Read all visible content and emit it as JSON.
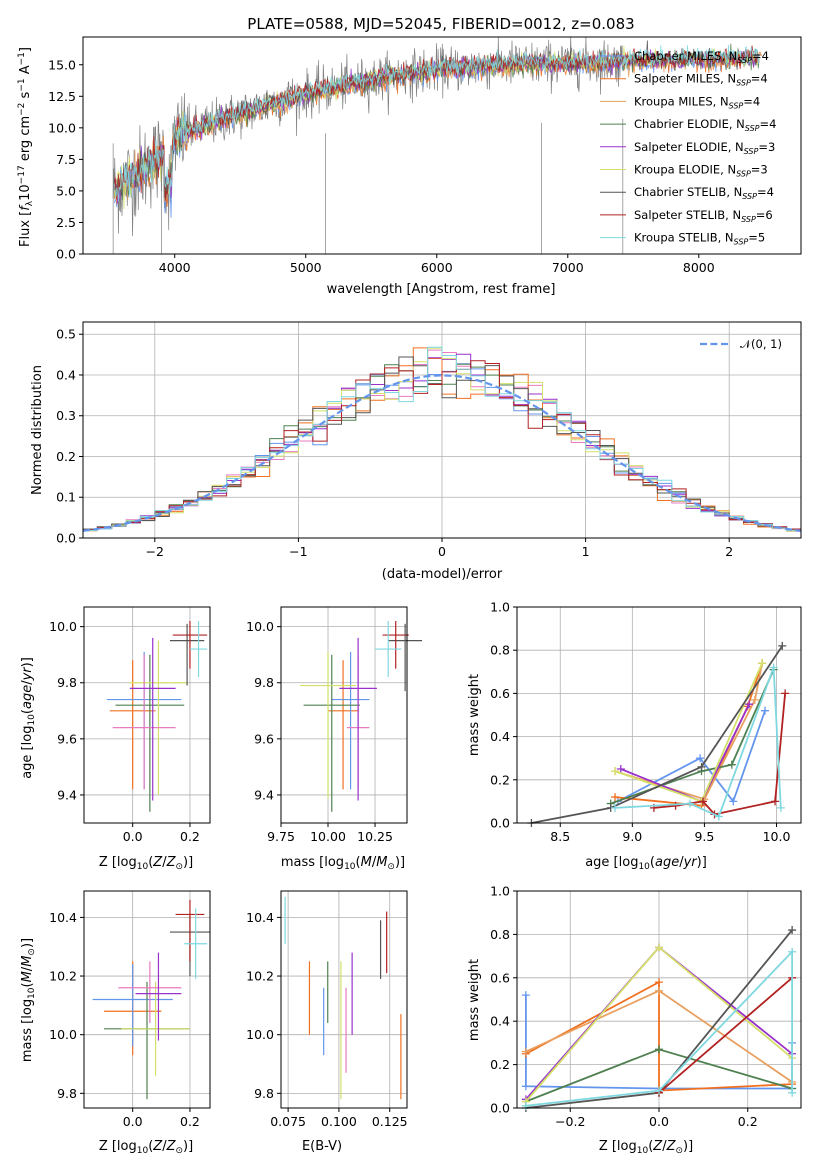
{
  "chart_data": [
    {
      "type": "line",
      "title": "PLATE=0588, MJD=52045, FIBERID=0012, z=0.083",
      "xlabel": "wavelength [Angstrom, rest frame]",
      "ylabel": "Flux [f_λ 10^-17 erg cm^-2 s^-1 A^-1]",
      "xlim": [
        3300,
        8780
      ],
      "ylim": [
        0,
        17.2
      ],
      "xticks": [
        "4000",
        "5000",
        "6000",
        "7000",
        "8000"
      ],
      "yticks": [
        "0.0",
        "2.5",
        "5.0",
        "7.5",
        "10.0",
        "12.5",
        "15.0"
      ],
      "grid": false,
      "legend": "right",
      "spectrum_shape": {
        "wavelength": [
          3500,
          3900,
          4000,
          4400,
          5000,
          5600,
          6000,
          6500,
          7000,
          7500,
          8000,
          8400
        ],
        "flux": [
          4.8,
          7.8,
          9.3,
          10.8,
          12.7,
          14.0,
          14.6,
          15.0,
          15.1,
          15.3,
          15.4,
          15.5
        ]
      },
      "series": [
        {
          "name": "Chabrier MILES, N_SSP=4"
        },
        {
          "name": "Salpeter MILES, N_SSP=4"
        },
        {
          "name": "Kroupa MILES, N_SSP=4"
        },
        {
          "name": "Chabrier ELODIE, N_SSP=4"
        },
        {
          "name": "Salpeter ELODIE, N_SSP=3"
        },
        {
          "name": "Kroupa ELODIE, N_SSP=3"
        },
        {
          "name": "Chabrier STELIB, N_SSP=4"
        },
        {
          "name": "Salpeter STELIB, N_SSP=6"
        },
        {
          "name": "Kroupa STELIB, N_SSP=5"
        }
      ]
    },
    {
      "type": "line",
      "xlabel": "(data-model)/error",
      "ylabel": "Normed distribution",
      "xlim": [
        -2.5,
        2.5
      ],
      "ylim": [
        0,
        0.53
      ],
      "xticks": [
        "−2",
        "−1",
        "0",
        "1",
        "2"
      ],
      "yticks": [
        "0.0",
        "0.1",
        "0.2",
        "0.3",
        "0.4",
        "0.5"
      ],
      "grid": true,
      "legend": "top-right",
      "reference": {
        "name": "𝒩(0, 1)",
        "mean": 0,
        "sigma": 1
      }
    },
    {
      "type": "scatter",
      "xlabel": "Z [log10(Z/Z⊙)]",
      "ylabel": "age [log10(age/yr)]",
      "xlim": [
        -0.17,
        0.27
      ],
      "ylim": [
        9.3,
        10.07
      ],
      "xticks": [
        "0.0",
        "0.2"
      ],
      "yticks": [
        "9.4",
        "9.6",
        "9.8",
        "10.0"
      ],
      "grid": true,
      "points": [
        {
          "x": 0.0,
          "xerr": 0.08,
          "y": 9.7,
          "yerr": [
            0.28,
            0.18
          ]
        },
        {
          "x": 0.04,
          "xerr": 0.13,
          "y": 9.74,
          "yerr": [
            0.32,
            0.17
          ]
        },
        {
          "x": 0.06,
          "xerr": 0.12,
          "y": 9.72,
          "yerr": [
            0.38,
            0.18
          ]
        },
        {
          "x": 0.09,
          "xerr": 0.1,
          "y": 9.8,
          "yerr": [
            0.4,
            0.15
          ]
        },
        {
          "x": 0.04,
          "xerr": 0.11,
          "y": 9.64,
          "yerr": [
            0.22,
            0.26
          ]
        },
        {
          "x": 0.07,
          "xerr": 0.08,
          "y": 9.78,
          "yerr": [
            0.4,
            0.18
          ]
        },
        {
          "x": 0.19,
          "xerr": 0.06,
          "y": 9.95,
          "yerr": [
            0.16,
            0.06
          ]
        },
        {
          "x": 0.2,
          "xerr": 0.06,
          "y": 9.97,
          "yerr": [
            0.12,
            0.05
          ]
        },
        {
          "x": 0.23,
          "xerr": 0.03,
          "y": 9.92,
          "yerr": [
            0.1,
            0.1
          ]
        }
      ]
    },
    {
      "type": "scatter",
      "xlabel": "mass [log10(M/M⊙)]",
      "ylabel": "",
      "xlim": [
        9.75,
        10.42
      ],
      "ylim": [
        9.3,
        10.07
      ],
      "xticks": [
        "9.75",
        "10.00",
        "10.25"
      ],
      "yticks": [
        "9.4",
        "9.6",
        "9.8",
        "10.0"
      ],
      "grid": true,
      "points": [
        {
          "x": 10.08,
          "xerr": 0.08,
          "y": 9.7,
          "yerr": [
            0.28,
            0.18
          ]
        },
        {
          "x": 10.12,
          "xerr": 0.1,
          "y": 9.74,
          "yerr": [
            0.32,
            0.17
          ]
        },
        {
          "x": 10.02,
          "xerr": 0.15,
          "y": 9.72,
          "yerr": [
            0.38,
            0.18
          ]
        },
        {
          "x": 10.0,
          "xerr": 0.15,
          "y": 9.79,
          "yerr": [
            0.4,
            0.12
          ]
        },
        {
          "x": 10.16,
          "xerr": 0.06,
          "y": 9.64,
          "yerr": [
            0.22,
            0.26
          ]
        },
        {
          "x": 10.16,
          "xerr": 0.1,
          "y": 9.78,
          "yerr": [
            0.4,
            0.18
          ]
        },
        {
          "x": 10.41,
          "xerr": 0.09,
          "y": 9.95,
          "yerr": [
            0.18,
            0.06
          ]
        },
        {
          "x": 10.36,
          "xerr": 0.07,
          "y": 9.97,
          "yerr": [
            0.12,
            0.05
          ]
        },
        {
          "x": 10.32,
          "xerr": 0.07,
          "y": 9.92,
          "yerr": [
            0.1,
            0.1
          ]
        }
      ]
    },
    {
      "type": "line",
      "xlabel": "age [log10(age/yr)]",
      "ylabel": "mass weight",
      "xlim": [
        8.2,
        10.17
      ],
      "ylim": [
        0,
        1.0
      ],
      "xticks": [
        "8.5",
        "9.0",
        "9.5",
        "10.0"
      ],
      "yticks": [
        "0.0",
        "0.2",
        "0.4",
        "0.6",
        "0.8",
        "1.0"
      ],
      "grid": true,
      "series_points": [
        {
          "x": [
            8.9,
            9.47,
            9.7,
            9.92
          ],
          "y": [
            0.1,
            0.3,
            0.1,
            0.52
          ]
        },
        {
          "x": [
            8.88,
            9.48,
            9.8,
            9.9
          ],
          "y": [
            0.12,
            0.08,
            0.54,
            0.74
          ]
        },
        {
          "x": [
            8.88,
            9.5,
            9.85,
            9.9
          ],
          "y": [
            0.24,
            0.11,
            0.57,
            0.74
          ]
        },
        {
          "x": [
            8.85,
            9.48,
            9.69,
            9.98
          ],
          "y": [
            0.09,
            0.24,
            0.27,
            0.71
          ]
        },
        {
          "x": [
            8.92,
            9.48,
            9.81
          ],
          "y": [
            0.25,
            0.1,
            0.55
          ]
        },
        {
          "x": [
            8.88,
            9.48,
            9.9
          ],
          "y": [
            0.24,
            0.1,
            0.74
          ]
        },
        {
          "x": [
            8.3,
            8.85,
            9.48,
            10.04
          ],
          "y": [
            0.0,
            0.07,
            0.26,
            0.82
          ]
        },
        {
          "x": [
            9.15,
            9.3,
            9.49,
            9.57,
            9.99,
            10.06
          ],
          "y": [
            0.07,
            0.08,
            0.1,
            0.04,
            0.1,
            0.6
          ]
        },
        {
          "x": [
            8.88,
            9.4,
            9.6,
            9.98,
            10.03
          ],
          "y": [
            0.07,
            0.09,
            0.03,
            0.72,
            0.07
          ]
        }
      ]
    },
    {
      "type": "scatter",
      "xlabel": "Z [log10(Z/Z⊙)]",
      "ylabel": "mass [log10(M/M⊙)]",
      "xlim": [
        -0.17,
        0.27
      ],
      "ylim": [
        9.75,
        10.49
      ],
      "xticks": [
        "0.0",
        "0.2"
      ],
      "yticks": [
        "9.8",
        "10.0",
        "10.2",
        "10.4"
      ],
      "grid": true,
      "points": [
        {
          "x": 0.0,
          "xerr": 0.1,
          "y": 10.08,
          "yerr": [
            0.15,
            0.17
          ]
        },
        {
          "x": 0.0,
          "xerr": 0.14,
          "y": 10.12,
          "yerr": [
            0.16,
            0.12
          ]
        },
        {
          "x": 0.05,
          "xerr": 0.15,
          "y": 10.02,
          "yerr": [
            0.24,
            0.16
          ]
        },
        {
          "x": 0.08,
          "xerr": 0.12,
          "y": 10.02,
          "yerr": [
            0.16,
            0.16
          ]
        },
        {
          "x": 0.06,
          "xerr": 0.11,
          "y": 10.16,
          "yerr": [
            0.12,
            0.09
          ]
        },
        {
          "x": 0.09,
          "xerr": 0.08,
          "y": 10.14,
          "yerr": [
            0.16,
            0.14
          ]
        },
        {
          "x": 0.2,
          "xerr": 0.07,
          "y": 10.35,
          "yerr": [
            0.15,
            0.06
          ]
        },
        {
          "x": 0.2,
          "xerr": 0.05,
          "y": 10.41,
          "yerr": [
            0.16,
            0.05
          ]
        },
        {
          "x": 0.22,
          "xerr": 0.04,
          "y": 10.31,
          "yerr": [
            0.12,
            0.12
          ]
        }
      ]
    },
    {
      "type": "scatter",
      "xlabel": "E(B-V)",
      "ylabel": "",
      "xlim": [
        0.0715,
        0.1335
      ],
      "ylim": [
        9.75,
        10.49
      ],
      "xticks": [
        "0.075",
        "0.100",
        "0.125"
      ],
      "yticks": [
        "9.8",
        "10.0",
        "10.2",
        "10.4"
      ],
      "grid": true,
      "segments": [
        {
          "x": 0.0855,
          "y": [
            10.0,
            10.25
          ]
        },
        {
          "x": 0.0925,
          "y": [
            9.93,
            10.16
          ]
        },
        {
          "x": 0.0945,
          "y": [
            10.04,
            10.25
          ]
        },
        {
          "x": 0.101,
          "y": [
            9.78,
            10.25
          ]
        },
        {
          "x": 0.1035,
          "y": [
            9.87,
            10.16
          ]
        },
        {
          "x": 0.1065,
          "y": [
            10.0,
            10.28
          ]
        },
        {
          "x": 0.1205,
          "y": [
            10.19,
            10.39
          ]
        },
        {
          "x": 0.1235,
          "y": [
            10.21,
            10.42
          ]
        },
        {
          "x": 0.0735,
          "y": [
            10.31,
            10.47
          ]
        },
        {
          "x": 0.1305,
          "y": [
            9.78,
            10.07
          ]
        }
      ]
    },
    {
      "type": "line",
      "xlabel": "Z [log10(Z/Z⊙)]",
      "ylabel": "mass weight",
      "xlim": [
        -0.32,
        0.32
      ],
      "ylim": [
        0,
        1.0
      ],
      "xticks": [
        "−0.2",
        "0.0",
        "0.2"
      ],
      "yticks": [
        "0.0",
        "0.2",
        "0.4",
        "0.6",
        "0.8",
        "1.0"
      ],
      "grid": true,
      "series_points": [
        {
          "x": [
            -0.3,
            -0.3,
            0.0,
            0.3,
            0.3
          ],
          "y": [
            0.52,
            0.1,
            0.09,
            0.09,
            0.3
          ]
        },
        {
          "x": [
            -0.3,
            0.0,
            0.0,
            0.3
          ],
          "y": [
            0.25,
            0.58,
            0.08,
            0.11
          ]
        },
        {
          "x": [
            -0.3,
            0.0,
            0.3
          ],
          "y": [
            0.26,
            0.54,
            0.12
          ]
        },
        {
          "x": [
            -0.3,
            0.0,
            0.0,
            0.3
          ],
          "y": [
            0.03,
            0.27,
            0.27,
            0.09
          ]
        },
        {
          "x": [
            -0.3,
            0.0,
            0.3
          ],
          "y": [
            0.04,
            0.74,
            0.25
          ]
        },
        {
          "x": [
            -0.3,
            0.0,
            0.3
          ],
          "y": [
            0.03,
            0.74,
            0.23
          ]
        },
        {
          "x": [
            -0.3,
            0.0,
            0.3
          ],
          "y": [
            0.0,
            0.07,
            0.82
          ]
        },
        {
          "x": [
            0.0,
            0.3
          ],
          "y": [
            0.07,
            0.6
          ]
        },
        {
          "x": [
            -0.3,
            0.0,
            0.3,
            0.3
          ],
          "y": [
            0.01,
            0.08,
            0.72,
            0.07
          ]
        }
      ]
    }
  ],
  "colors": [
    "#6495ed",
    "#f07020",
    "#e8a060",
    "#4f8050",
    "#9932cc",
    "#d4e06a",
    "#555555",
    "#b22222",
    "#7fd8e0"
  ],
  "scatter_colors": [
    "#f07020",
    "#6495ed",
    "#4f8050",
    "#d4e06a",
    "#e87cc0",
    "#9932cc",
    "#555555",
    "#b22222",
    "#7fd8e0"
  ],
  "extra_colors": [
    "#e87cc0",
    "#b9c44a"
  ],
  "gray": "#808080",
  "normal_color": "#6495ed"
}
